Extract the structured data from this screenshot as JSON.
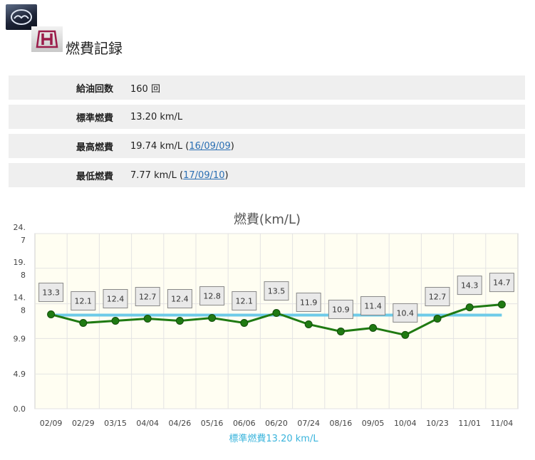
{
  "header": {
    "title": "燃費記録"
  },
  "stats": [
    {
      "label": "給油回数",
      "value": "160 回",
      "date_prefix": "",
      "date": "",
      "date_suffix": ""
    },
    {
      "label": "標準燃費",
      "value": "13.20 km/L",
      "date_prefix": "",
      "date": "",
      "date_suffix": ""
    },
    {
      "label": "最高燃費",
      "value": "19.74 km/L",
      "date_prefix": " (",
      "date": "16/09/09",
      "date_suffix": ")"
    },
    {
      "label": "最低燃費",
      "value": "7.77 km/L",
      "date_prefix": " (",
      "date": "17/09/10",
      "date_suffix": ")"
    }
  ],
  "chart_data": {
    "type": "line",
    "title": "燃費(km/L)",
    "categories": [
      "02/09",
      "02/29",
      "03/15",
      "04/04",
      "04/26",
      "05/16",
      "06/06",
      "06/20",
      "07/24",
      "08/16",
      "09/05",
      "10/04",
      "10/23",
      "11/01",
      "11/04"
    ],
    "series": [
      {
        "values": [
          13.3,
          12.1,
          12.4,
          12.7,
          12.4,
          12.8,
          12.1,
          13.5,
          11.9,
          10.9,
          11.4,
          10.4,
          12.7,
          14.3,
          14.7
        ],
        "color": "#1f7a12"
      }
    ],
    "data_labels": [
      "13.3",
      "12.1",
      "12.4",
      "12.7",
      "12.4",
      "12.8",
      "12.1",
      "13.5",
      "11.9",
      "10.9",
      "11.4",
      "10.4",
      "12.7",
      "14.3",
      "14.7"
    ],
    "reference_line": {
      "value": 13.2,
      "label": "標準燃費13.20 km/L",
      "color": "#6ecbe8"
    },
    "ylim": [
      0,
      24.7
    ],
    "yticks": [
      {
        "value": 24.7,
        "label": [
          "24.",
          "7"
        ]
      },
      {
        "value": 19.8,
        "label": [
          "19.",
          "8"
        ]
      },
      {
        "value": 14.8,
        "label": [
          "14.",
          "8"
        ]
      },
      {
        "value": 9.9,
        "label": [
          "9.9"
        ]
      },
      {
        "value": 4.9,
        "label": [
          "4.9"
        ]
      },
      {
        "value": 0.0,
        "label": [
          "0.0"
        ]
      }
    ],
    "grid": true,
    "plot_background": "#fffef2"
  }
}
